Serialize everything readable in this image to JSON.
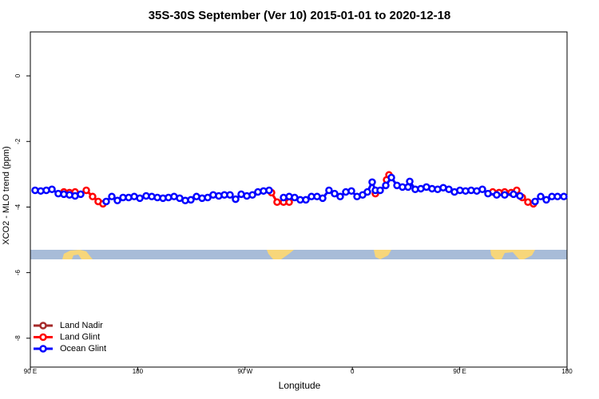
{
  "chart_data": {
    "type": "line",
    "title": "35S-30S September (Ver 10)   2015-01-01 to 2020-12-18",
    "x_label": "Longitude",
    "y_label": "XCO2 - MLO trend (ppm)",
    "xlim": [
      90,
      540
    ],
    "xticks": [
      {
        "value": 90,
        "label": "90 E"
      },
      {
        "value": 180,
        "label": "180"
      },
      {
        "value": 270,
        "label": "90 W"
      },
      {
        "value": 360,
        "label": "0"
      },
      {
        "value": 450,
        "label": "90 E"
      },
      {
        "value": 540,
        "label": "180"
      }
    ],
    "ylim": [
      -8.88,
      1.34
    ],
    "yticks": [
      0,
      -2,
      -4,
      -6,
      -8
    ],
    "legend": "bottom-left",
    "series": [
      {
        "name": "Land Nadir",
        "color": "#a52a2a",
        "x": [],
        "values": []
      },
      {
        "name": "Land Glint",
        "color": "#ff0000",
        "x": [
          118.1,
          122.8,
          127.5,
          136.9,
          142.2,
          146.9,
          150.9,
          292.2,
          296.9,
          302.3,
          307.0,
          379.3,
          388.7,
          390.7,
          477.7,
          483.0,
          487.7,
          493.1,
          497.8,
          502.5,
          507.2,
          511.8
        ],
        "values": [
          -3.54,
          -3.56,
          -3.54,
          -3.49,
          -3.68,
          -3.83,
          -3.9,
          -3.56,
          -3.85,
          -3.85,
          -3.85,
          -3.59,
          -3.17,
          -3.02,
          -3.54,
          -3.56,
          -3.54,
          -3.56,
          -3.49,
          -3.71,
          -3.85,
          -3.9
        ]
      },
      {
        "name": "Ocean Glint",
        "color": "#0000ff",
        "x": [
          94.0,
          98.7,
          103.4,
          108.1,
          113.4,
          118.1,
          122.8,
          127.5,
          132.2,
          153.6,
          158.3,
          163.0,
          167.7,
          172.4,
          177.1,
          181.8,
          187.1,
          191.8,
          196.5,
          201.2,
          205.8,
          210.5,
          215.2,
          219.9,
          224.6,
          229.3,
          234.0,
          238.7,
          243.3,
          248.0,
          252.7,
          257.4,
          262.1,
          266.8,
          271.5,
          276.2,
          280.8,
          285.5,
          290.2,
          302.3,
          307.0,
          311.6,
          316.3,
          321.0,
          325.7,
          330.4,
          335.1,
          340.4,
          345.1,
          349.8,
          354.5,
          359.2,
          363.9,
          368.6,
          372.6,
          376.6,
          379.3,
          383.3,
          388.0,
          392.7,
          397.4,
          402.0,
          406.7,
          408.1,
          412.7,
          417.4,
          422.1,
          426.8,
          431.5,
          436.2,
          440.9,
          445.6,
          450.2,
          454.9,
          459.6,
          464.3,
          469.0,
          473.7,
          481.0,
          487.7,
          495.1,
          500.5,
          513.2,
          517.9,
          522.6,
          527.3,
          532.0,
          537.3
        ],
        "values": [
          -3.49,
          -3.51,
          -3.49,
          -3.46,
          -3.59,
          -3.61,
          -3.63,
          -3.66,
          -3.61,
          -3.83,
          -3.68,
          -3.8,
          -3.71,
          -3.71,
          -3.68,
          -3.73,
          -3.66,
          -3.68,
          -3.71,
          -3.73,
          -3.71,
          -3.68,
          -3.73,
          -3.8,
          -3.78,
          -3.68,
          -3.73,
          -3.71,
          -3.63,
          -3.66,
          -3.63,
          -3.63,
          -3.76,
          -3.61,
          -3.66,
          -3.63,
          -3.54,
          -3.51,
          -3.49,
          -3.71,
          -3.68,
          -3.71,
          -3.78,
          -3.78,
          -3.68,
          -3.68,
          -3.73,
          -3.49,
          -3.59,
          -3.68,
          -3.54,
          -3.51,
          -3.68,
          -3.63,
          -3.54,
          -3.24,
          -3.49,
          -3.49,
          -3.34,
          -3.1,
          -3.34,
          -3.39,
          -3.39,
          -3.22,
          -3.46,
          -3.44,
          -3.39,
          -3.44,
          -3.46,
          -3.41,
          -3.46,
          -3.54,
          -3.49,
          -3.51,
          -3.49,
          -3.51,
          -3.46,
          -3.59,
          -3.63,
          -3.63,
          -3.61,
          -3.66,
          -3.83,
          -3.68,
          -3.78,
          -3.68,
          -3.68,
          -3.68
        ]
      }
    ]
  }
}
